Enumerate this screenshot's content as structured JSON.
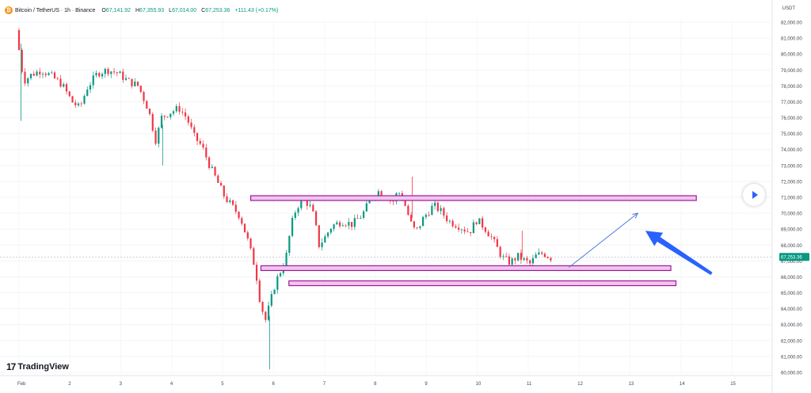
{
  "header": {
    "title": "Bitcoin / TetherUS · 1h · Binance",
    "open_label": "O",
    "open": "67,141.92",
    "high_label": "H",
    "high": "67,355.93",
    "low_label": "L",
    "low": "67,014.00",
    "close_label": "C",
    "close": "67,253.36",
    "change": "+111.43 (+0.17%)"
  },
  "currency_unit": "USDT",
  "branding": {
    "mark": "17",
    "name": "TradingView"
  },
  "colors": {
    "up": "#089981",
    "down": "#f23645",
    "zone_fill": "#f1c4ee",
    "zone_stroke": "#a01898",
    "arrow": "#2962ff",
    "price_tag": "#089981"
  },
  "chart_data": {
    "type": "candlestick",
    "title": "Bitcoin / TetherUS · 1h · Binance",
    "x_ticks": [
      "Feb",
      "2",
      "3",
      "4",
      "5",
      "6",
      "7",
      "8",
      "9",
      "10",
      "11",
      "12",
      "13",
      "14",
      "15"
    ],
    "y_ticks": [
      "82,000.00",
      "81,000.00",
      "80,000.00",
      "79,000.00",
      "78,000.00",
      "77,000.00",
      "76,000.00",
      "75,000.00",
      "74,000.00",
      "73,000.00",
      "72,000.00",
      "71,000.00",
      "70,000.00",
      "69,000.00",
      "68,000.00",
      "67,000.00",
      "66,000.00",
      "65,000.00",
      "64,000.00",
      "63,000.00",
      "62,000.00",
      "61,000.00",
      "60,000.00"
    ],
    "ylim": [
      60000,
      82200
    ],
    "xlim": [
      1,
      16.2
    ],
    "current_price": {
      "value": 67253.36,
      "label": "67,253.36"
    },
    "price_path": [
      [
        1.0,
        81500
      ],
      [
        1.08,
        79800
      ],
      [
        1.15,
        78300
      ],
      [
        1.3,
        78700
      ],
      [
        1.5,
        79000
      ],
      [
        1.7,
        78600
      ],
      [
        1.9,
        78100
      ],
      [
        2.1,
        77000
      ],
      [
        2.25,
        76600
      ],
      [
        2.4,
        77900
      ],
      [
        2.6,
        78800
      ],
      [
        2.8,
        79000
      ],
      [
        3.0,
        78800
      ],
      [
        3.2,
        78300
      ],
      [
        3.4,
        78000
      ],
      [
        3.6,
        76500
      ],
      [
        3.75,
        74500
      ],
      [
        3.85,
        76000
      ],
      [
        4.0,
        76300
      ],
      [
        4.2,
        76600
      ],
      [
        4.35,
        76000
      ],
      [
        4.5,
        74800
      ],
      [
        4.65,
        74200
      ],
      [
        4.8,
        73000
      ],
      [
        4.95,
        72000
      ],
      [
        5.1,
        71000
      ],
      [
        5.25,
        70400
      ],
      [
        5.4,
        69800
      ],
      [
        5.55,
        68300
      ],
      [
        5.7,
        66500
      ],
      [
        5.8,
        64300
      ],
      [
        5.9,
        63300
      ],
      [
        6.0,
        64500
      ],
      [
        6.1,
        65700
      ],
      [
        6.2,
        66400
      ],
      [
        6.3,
        67200
      ],
      [
        6.4,
        69200
      ],
      [
        6.5,
        70300
      ],
      [
        6.6,
        70800
      ],
      [
        6.75,
        70600
      ],
      [
        6.85,
        69800
      ],
      [
        6.95,
        68000
      ],
      [
        7.05,
        68400
      ],
      [
        7.2,
        69200
      ],
      [
        7.4,
        69500
      ],
      [
        7.6,
        69300
      ],
      [
        7.8,
        69900
      ],
      [
        7.95,
        70800
      ],
      [
        8.1,
        71400
      ],
      [
        8.25,
        71100
      ],
      [
        8.4,
        70700
      ],
      [
        8.5,
        71400
      ],
      [
        8.6,
        70900
      ],
      [
        8.75,
        69400
      ],
      [
        8.85,
        68800
      ],
      [
        9.0,
        69700
      ],
      [
        9.2,
        70500
      ],
      [
        9.35,
        70100
      ],
      [
        9.5,
        69500
      ],
      [
        9.7,
        69200
      ],
      [
        9.9,
        68800
      ],
      [
        10.05,
        69600
      ],
      [
        10.2,
        69100
      ],
      [
        10.35,
        68400
      ],
      [
        10.55,
        67200
      ],
      [
        10.7,
        66900
      ],
      [
        10.85,
        67300
      ],
      [
        11.0,
        67000
      ],
      [
        11.1,
        66800
      ],
      [
        11.2,
        67300
      ],
      [
        11.35,
        67500
      ],
      [
        11.5,
        67200
      ]
    ],
    "spike_lows": [
      [
        5.92,
        60200
      ],
      [
        3.82,
        73000
      ],
      [
        1.04,
        75800
      ]
    ],
    "spike_highs": [
      [
        8.72,
        72300
      ],
      [
        10.88,
        68900
      ]
    ],
    "zones": [
      {
        "label": "resistance",
        "from": 70850,
        "to": 71050,
        "x_start": 5.55,
        "x_end": 14.3
      },
      {
        "label": "support-1",
        "from": 66450,
        "to": 66650,
        "x_start": 5.75,
        "x_end": 13.8
      },
      {
        "label": "support-2",
        "from": 65500,
        "to": 65700,
        "x_start": 6.3,
        "x_end": 13.9
      }
    ],
    "projection_arrow": {
      "from": [
        11.8,
        66600
      ],
      "to": [
        13.15,
        70000
      ]
    },
    "pointer_arrow": {
      "from": [
        14.6,
        66200
      ],
      "to": [
        13.3,
        68900
      ]
    }
  }
}
